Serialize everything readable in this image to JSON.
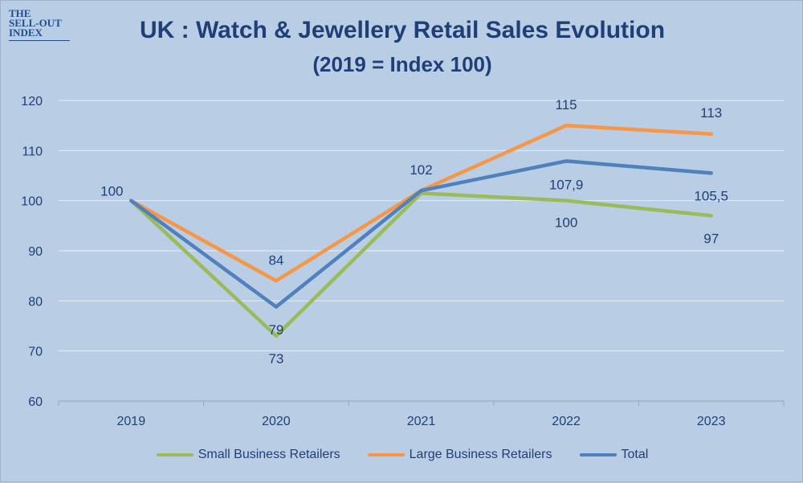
{
  "logo": {
    "lines": [
      "THE",
      "SELL-OUT",
      "INDEX"
    ]
  },
  "colors": {
    "background": "#b9cde5",
    "text": "#1f3f77"
  },
  "chart_data": {
    "type": "line",
    "title": "UK : Watch & Jewellery Retail Sales Evolution",
    "subtitle": "(2019 = Index 100)",
    "categories": [
      "2019",
      "2020",
      "2021",
      "2022",
      "2023"
    ],
    "ylim": [
      60,
      120
    ],
    "yticks": [
      "60",
      "70",
      "80",
      "90",
      "100",
      "110",
      "120"
    ],
    "grid": true,
    "legend_position": "bottom",
    "series": [
      {
        "name": "Small Business Retailers",
        "color": "#9bbb59",
        "values": [
          100,
          73,
          101.5,
          100,
          97
        ],
        "labels": [
          "",
          "73",
          "",
          "100",
          "97"
        ]
      },
      {
        "name": "Large Business Retailers",
        "color": "#f79646",
        "values": [
          100,
          84,
          102,
          115,
          113.3
        ],
        "labels": [
          "",
          "84",
          "",
          "115",
          "113"
        ]
      },
      {
        "name": "Total",
        "color": "#4f81bd",
        "values": [
          100,
          78.8,
          102,
          107.9,
          105.5
        ],
        "labels": [
          "100",
          "79",
          "102",
          "107,9",
          "105,5"
        ]
      }
    ]
  }
}
